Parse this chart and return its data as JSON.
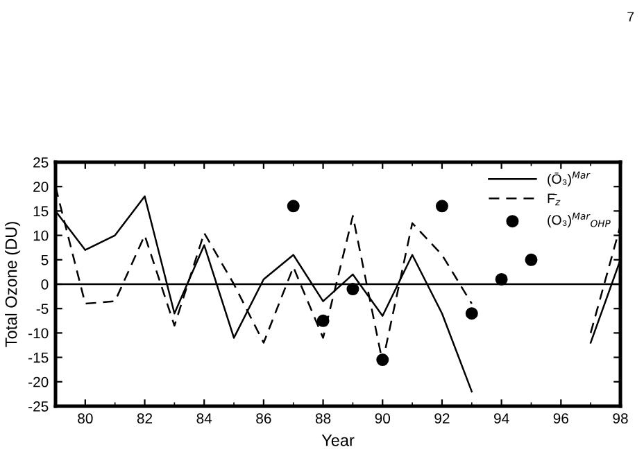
{
  "chart_data": {
    "type": "line",
    "xlabel": "Year",
    "ylabel": "Total Ozone (DU)",
    "annotations": [
      "7"
    ],
    "xlim": [
      79,
      98
    ],
    "xticks": [
      {
        "value": 80,
        "label": "80"
      },
      {
        "value": 82,
        "label": "82"
      },
      {
        "value": 84,
        "label": "84"
      },
      {
        "value": 86,
        "label": "86"
      },
      {
        "value": 88,
        "label": "88"
      },
      {
        "value": 90,
        "label": "90"
      },
      {
        "value": 92,
        "label": "92"
      },
      {
        "value": 94,
        "label": "94"
      },
      {
        "value": 96,
        "label": "96"
      },
      {
        "value": 98,
        "label": "98"
      }
    ],
    "ylim": [
      -25,
      25
    ],
    "yticks": [
      -25,
      -20,
      -15,
      -10,
      -5,
      0,
      5,
      10,
      15,
      20,
      25
    ],
    "ref_lines": [
      {
        "axis": "y",
        "value": 0,
        "color": "#000000"
      }
    ],
    "legend": "top right",
    "grid": false,
    "series": [
      {
        "name": "(Ō₃)$^{Mar}$",
        "color": "#000000",
        "line_style": "solid",
        "x": [
          79,
          80,
          81,
          82,
          83,
          84,
          85,
          86,
          87,
          88,
          89,
          90,
          91,
          92,
          93,
          94,
          95,
          96,
          97,
          98
        ],
        "values": [
          15,
          7,
          10,
          18,
          -6,
          8,
          -11,
          1,
          6,
          -3.5,
          2,
          -6.5,
          6,
          -6,
          -22,
          null,
          null,
          null,
          -12,
          5
        ]
      },
      {
        "name": "F̄$_{z}$",
        "color": "#000000",
        "line_style": "dashed",
        "x": [
          79,
          80,
          81,
          82,
          83,
          84,
          85,
          86,
          87,
          88,
          89,
          90,
          91,
          92,
          93,
          94,
          95,
          96,
          97,
          98
        ],
        "values": [
          20,
          -4,
          -3.5,
          10,
          -8.5,
          10.5,
          0,
          -12,
          3.5,
          -11,
          14,
          -16,
          12.5,
          6,
          -4,
          null,
          null,
          null,
          -10,
          12
        ]
      },
      {
        "name": "(O₃)$^{Mar}$$_{OHP}$",
        "type": "scatter",
        "color": "#000000",
        "marker": "circle",
        "x": [
          87,
          88,
          89,
          90,
          92,
          93,
          94,
          95
        ],
        "values": [
          16,
          -7.5,
          -1,
          -15.5,
          16,
          -6,
          1,
          5
        ]
      }
    ]
  }
}
